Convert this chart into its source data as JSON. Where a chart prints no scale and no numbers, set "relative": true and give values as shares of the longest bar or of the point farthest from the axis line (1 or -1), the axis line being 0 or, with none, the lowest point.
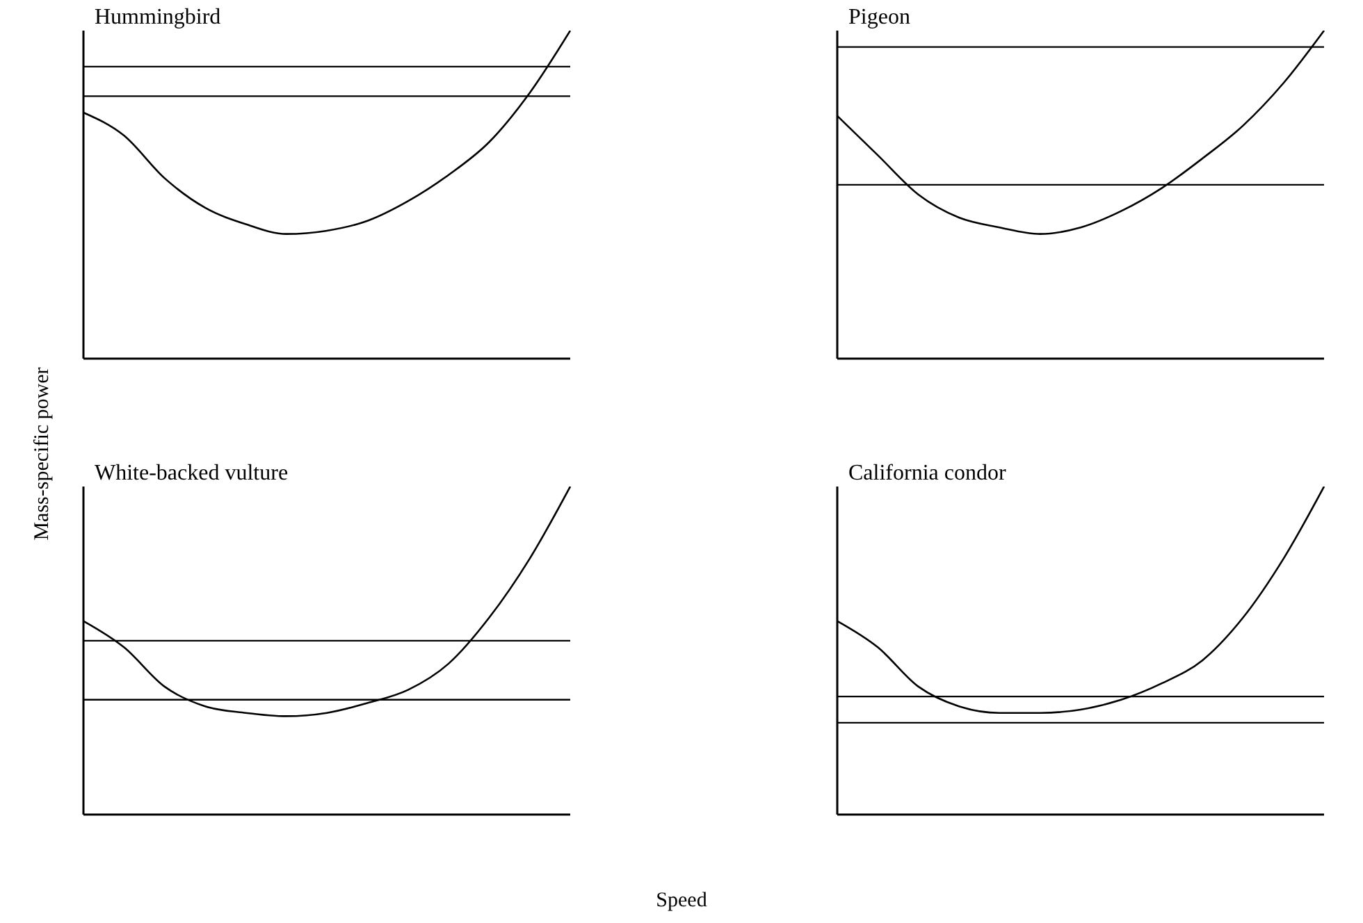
{
  "chart_data": [
    {
      "type": "line",
      "title": "Hummingbird",
      "ylabel": "Mass-specific power",
      "relative": true,
      "categories": [
        null,
        null,
        null,
        null,
        null,
        null,
        null,
        null,
        null,
        null,
        null,
        null,
        null
      ],
      "series": [
        {
          "color": "#000000",
          "values": [
            0.75,
            0.68,
            0.55,
            0.46,
            0.41,
            0.38,
            0.39,
            0.42,
            0.48,
            0.56,
            0.66,
            0.81,
            1
          ]
        }
      ],
      "ref_lines": [
        {
          "axis": "y",
          "value": 0.89
        },
        {
          "axis": "y",
          "value": 0.8
        }
      ]
    },
    {
      "type": "line",
      "title": "Pigeon",
      "relative": true,
      "categories": [
        null,
        null,
        null,
        null,
        null,
        null,
        null,
        null,
        null,
        null,
        null,
        null,
        null
      ],
      "series": [
        {
          "color": "#000000",
          "values": [
            0.74,
            0.62,
            0.5,
            0.43,
            0.4,
            0.38,
            0.4,
            0.45,
            0.52,
            0.61,
            0.71,
            0.84,
            1
          ]
        }
      ],
      "ref_lines": [
        {
          "axis": "y",
          "value": 0.95
        },
        {
          "axis": "y",
          "value": 0.53
        }
      ]
    },
    {
      "type": "line",
      "title": "White-backed vulture",
      "xlabel": "Speed",
      "relative": true,
      "categories": [
        null,
        null,
        null,
        null,
        null,
        null,
        null,
        null,
        null,
        null,
        null,
        null,
        null
      ],
      "series": [
        {
          "color": "#000000",
          "values": [
            0.59,
            0.51,
            0.39,
            0.33,
            0.31,
            0.3,
            0.31,
            0.34,
            0.38,
            0.46,
            0.6,
            0.78,
            1
          ]
        }
      ],
      "ref_lines": [
        {
          "axis": "y",
          "value": 0.53
        },
        {
          "axis": "y",
          "value": 0.35
        }
      ]
    },
    {
      "type": "line",
      "title": "California condor",
      "relative": true,
      "categories": [
        null,
        null,
        null,
        null,
        null,
        null,
        null,
        null,
        null,
        null,
        null,
        null,
        null
      ],
      "series": [
        {
          "color": "#000000",
          "values": [
            0.59,
            0.51,
            0.39,
            0.33,
            0.31,
            0.31,
            0.32,
            0.35,
            0.4,
            0.47,
            0.6,
            0.78,
            1
          ]
        }
      ],
      "ref_lines": [
        {
          "axis": "y",
          "value": 0.36
        },
        {
          "axis": "y",
          "value": 0.28
        }
      ]
    }
  ]
}
